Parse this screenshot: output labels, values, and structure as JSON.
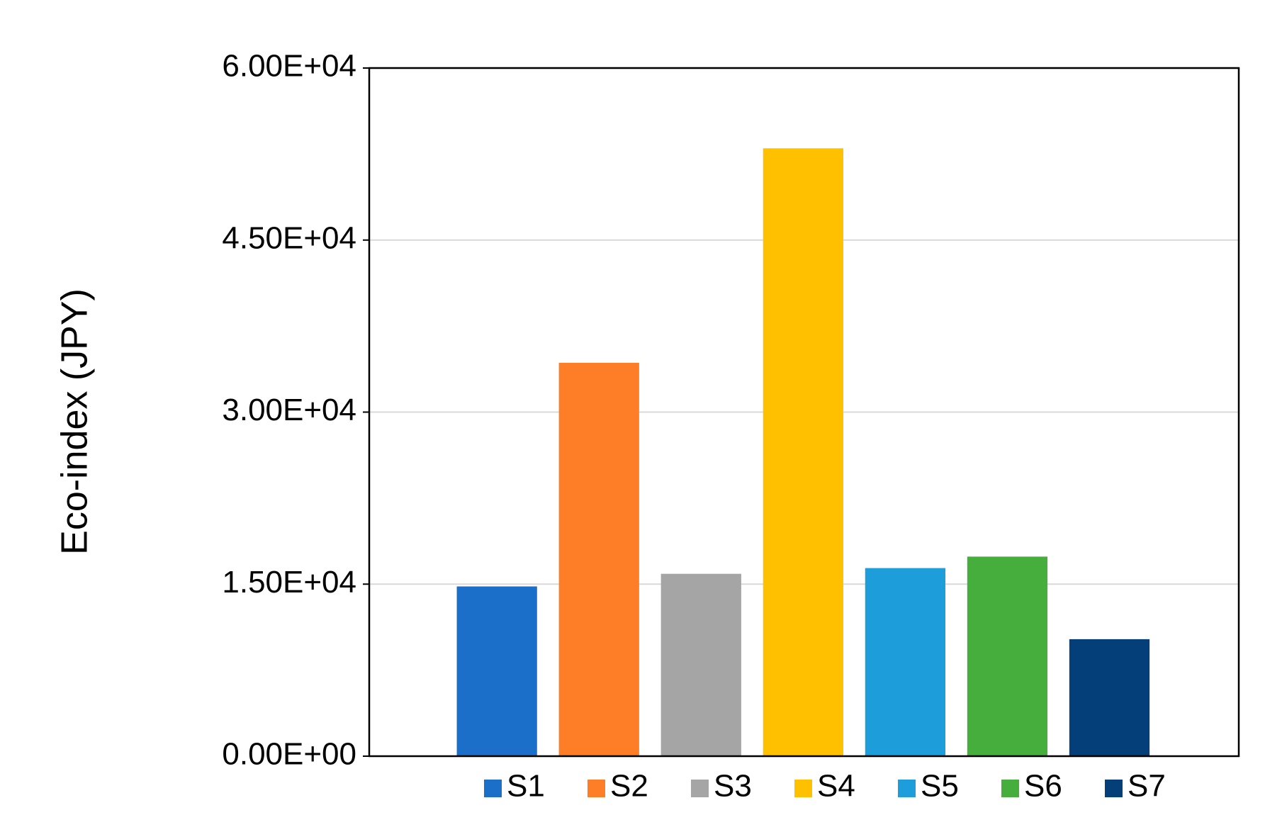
{
  "chart_data": {
    "type": "bar",
    "y_label": "Eco-index (JPY)",
    "series": [
      {
        "name": "S1",
        "color": "#1b6fc8",
        "values": [
          14800
        ]
      },
      {
        "name": "S2",
        "color": "#fd7e27",
        "values": [
          34300
        ]
      },
      {
        "name": "S3",
        "color": "#a5a5a5",
        "values": [
          15900
        ]
      },
      {
        "name": "S4",
        "color": "#ffc000",
        "values": [
          53000
        ]
      },
      {
        "name": "S5",
        "color": "#1d9edb",
        "values": [
          16400
        ]
      },
      {
        "name": "S6",
        "color": "#45ae3c",
        "values": [
          17400
        ]
      },
      {
        "name": "S7",
        "color": "#053f79",
        "values": [
          10200
        ]
      }
    ],
    "ylim": [
      0,
      60000
    ],
    "yticks": [
      {
        "value": 0,
        "label": "0.00E+00"
      },
      {
        "value": 15000,
        "label": "1.50E+04"
      },
      {
        "value": 30000,
        "label": "3.00E+04"
      },
      {
        "value": 45000,
        "label": "4.50E+04"
      },
      {
        "value": 60000,
        "label": "6.00E+04"
      }
    ],
    "grid": true,
    "legend": "bottom"
  }
}
